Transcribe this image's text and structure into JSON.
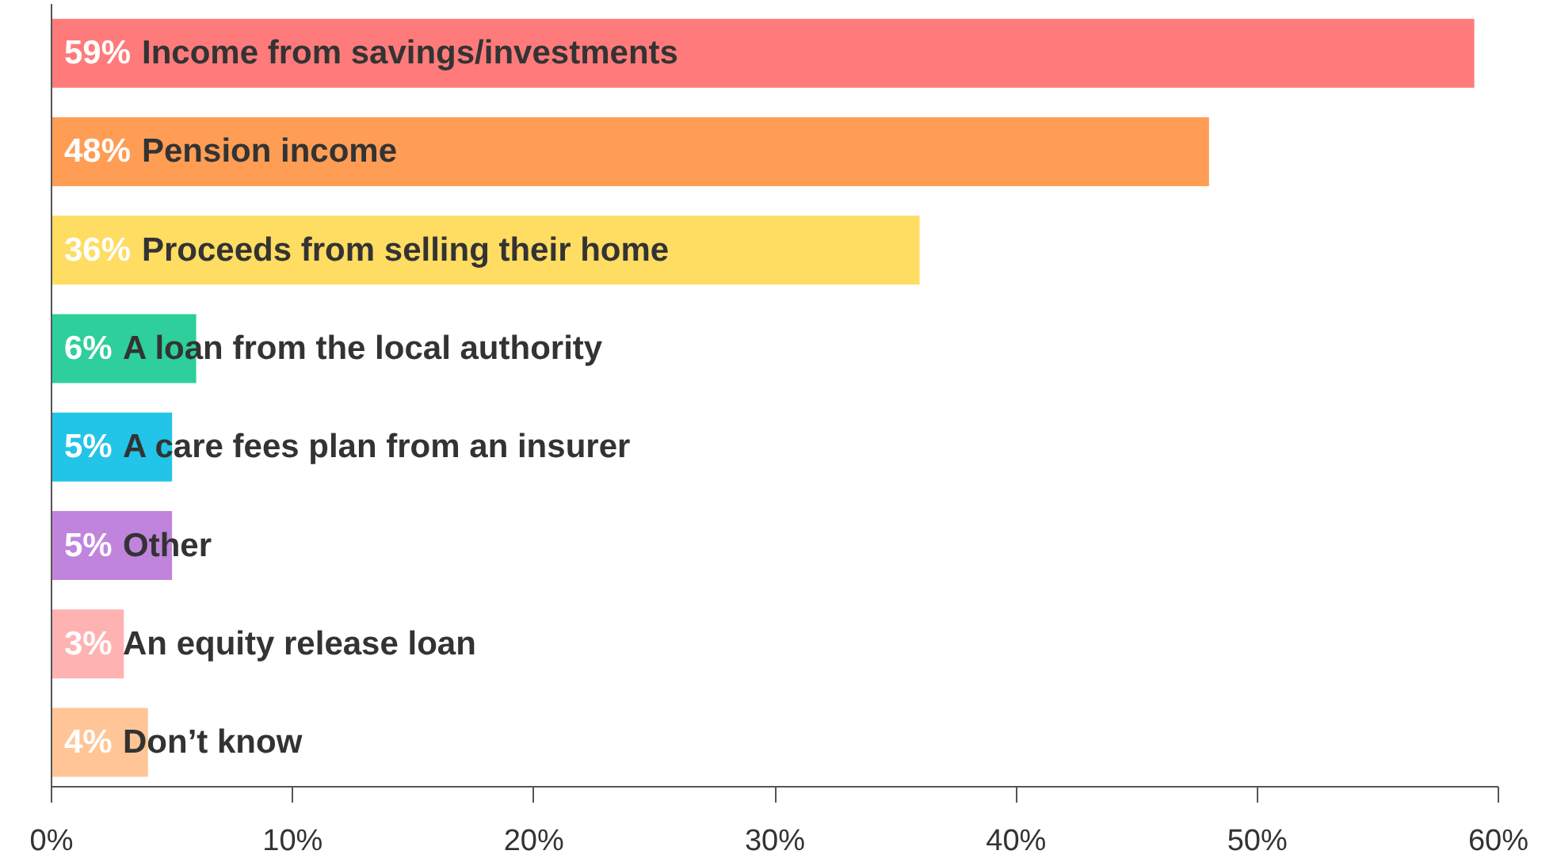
{
  "chart_data": {
    "type": "bar",
    "orientation": "horizontal",
    "categories": [
      "Income from savings/investments",
      "Pension income",
      "Proceeds from selling their home",
      "A loan from the local authority",
      "A care fees plan from an insurer",
      "Other",
      "An equity release loan",
      "Don’t know"
    ],
    "values": [
      59,
      48,
      36,
      6,
      5,
      5,
      3,
      4
    ],
    "value_labels": [
      "59%",
      "48%",
      "36%",
      "6%",
      "5%",
      "5%",
      "3%",
      "4%"
    ],
    "colors": [
      "#ff7b7b",
      "#ff9d55",
      "#ffdc62",
      "#2ecf9b",
      "#22c4e8",
      "#c084dc",
      "#ffb2b2",
      "#ffc596"
    ],
    "xlim": [
      0,
      60
    ],
    "xticks": [
      {
        "value": 0,
        "label": "0%"
      },
      {
        "value": 10,
        "label": "10%"
      },
      {
        "value": 20,
        "label": "20%"
      },
      {
        "value": 30,
        "label": "30%"
      },
      {
        "value": 40,
        "label": "40%"
      },
      {
        "value": 50,
        "label": "50%"
      },
      {
        "value": 60,
        "label": "60%"
      }
    ],
    "tick_labels": "x",
    "grid": false
  }
}
